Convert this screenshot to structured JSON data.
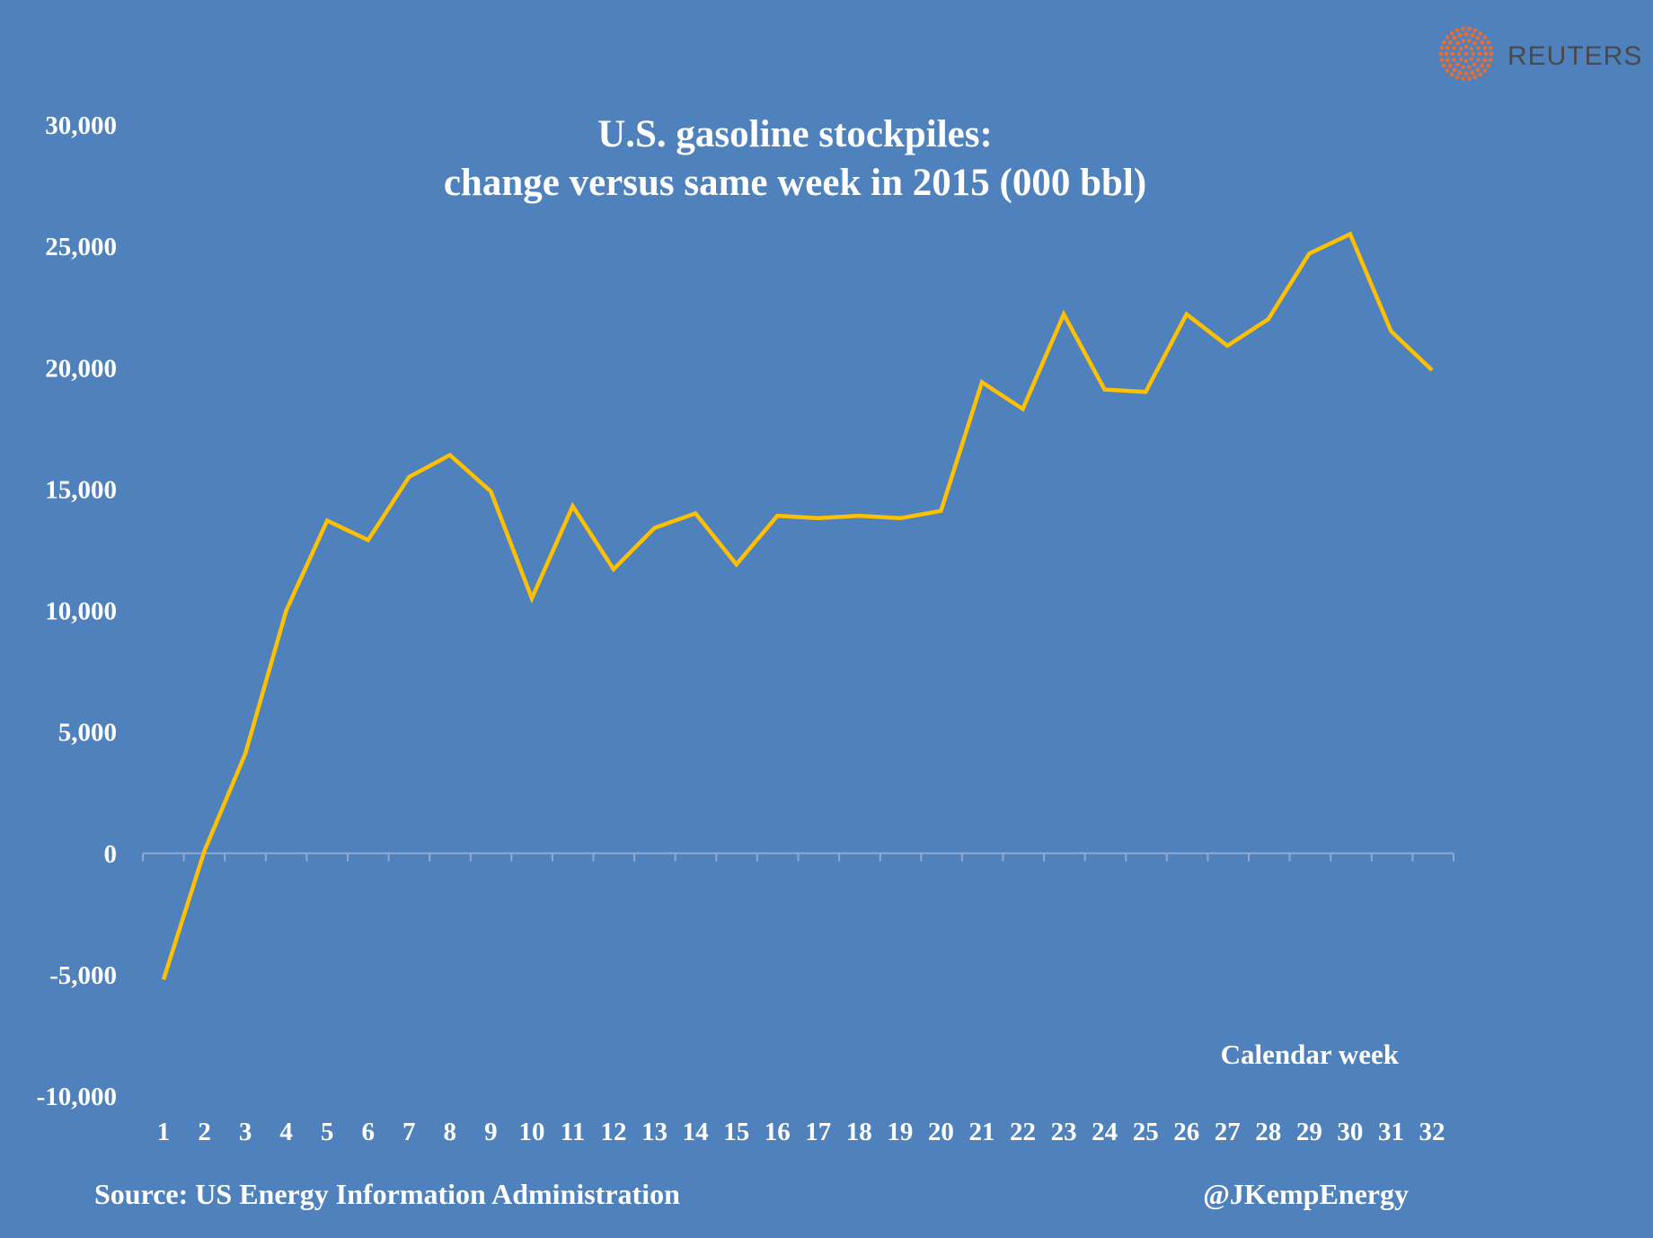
{
  "colors": {
    "background": "#4f81bd",
    "series": "#ffc000",
    "text": "#ffffff",
    "axis": "#8ea9d4",
    "brand_text": "#4a4a4a",
    "brand_logo": "#f26b2b"
  },
  "brand": {
    "name": "REUTERS",
    "logo_icon": "reuters-dots-logo-icon"
  },
  "footer": {
    "source": "Source: US Energy Information Administration",
    "handle": "@JKempEnergy"
  },
  "chart_data": {
    "type": "line",
    "title_lines": [
      "U.S. gasoline stockpiles:",
      "change versus same week in 2015 (000 bbl)"
    ],
    "xlabel": "Calendar week",
    "ylabel": "",
    "ylim": [
      -10000,
      30000
    ],
    "yticks": [
      30000,
      25000,
      20000,
      15000,
      10000,
      5000,
      0,
      -5000,
      -10000
    ],
    "ytick_labels": [
      "30,000",
      "25,000",
      "20,000",
      "15,000",
      "10,000",
      "5,000",
      "0",
      "-5,000",
      "-10,000"
    ],
    "x": [
      1,
      2,
      3,
      4,
      5,
      6,
      7,
      8,
      9,
      10,
      11,
      12,
      13,
      14,
      15,
      16,
      17,
      18,
      19,
      20,
      21,
      22,
      23,
      24,
      25,
      26,
      27,
      28,
      29,
      30,
      31,
      32
    ],
    "x_tick_labels": [
      "1",
      "2",
      "3",
      "4",
      "5",
      "6",
      "7",
      "8",
      "9",
      "10",
      "11",
      "12",
      "13",
      "14",
      "15",
      "16",
      "17",
      "18",
      "19",
      "20",
      "21",
      "22",
      "23",
      "24",
      "25",
      "26",
      "27",
      "28",
      "29",
      "30",
      "31",
      "32"
    ],
    "grid": false,
    "legend": "none",
    "series": [
      {
        "values": [
          -5200,
          100,
          4100,
          10000,
          13700,
          12900,
          15500,
          16400,
          14900,
          10500,
          14300,
          11700,
          13400,
          14000,
          11900,
          13900,
          13800,
          13900,
          13800,
          14100,
          19400,
          18300,
          22200,
          19100,
          19000,
          22200,
          20900,
          22000,
          24700,
          25500,
          21500,
          19900
        ]
      }
    ]
  }
}
